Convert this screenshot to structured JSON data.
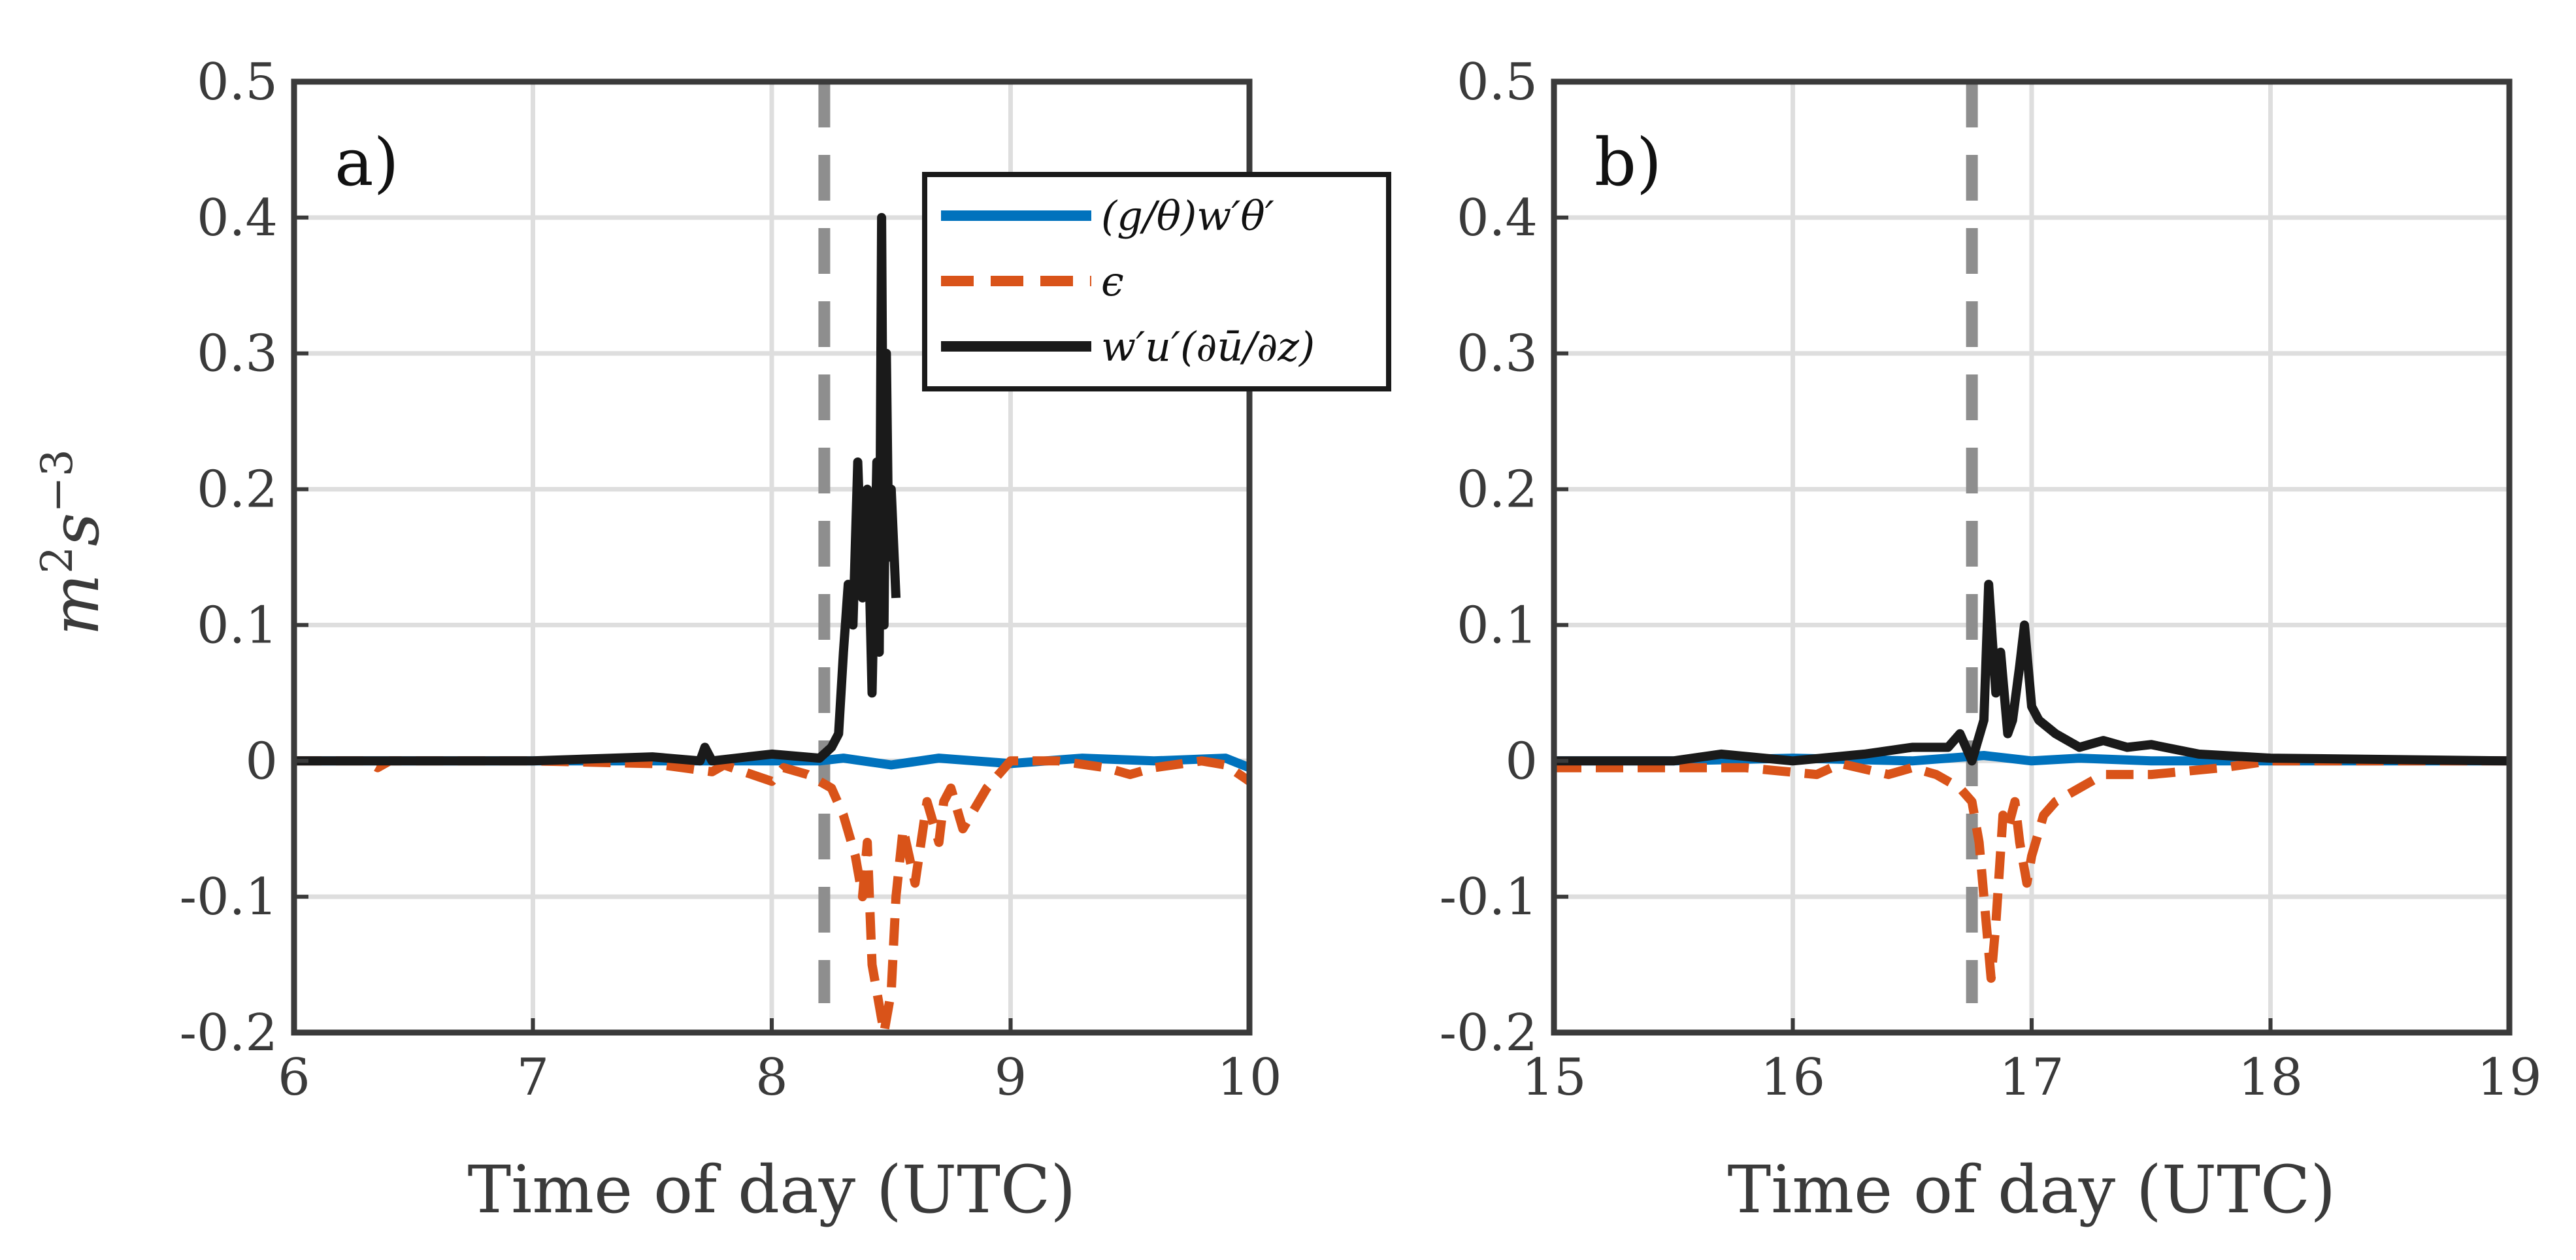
{
  "chart_data": [
    {
      "type": "line",
      "panel_label": "a)",
      "xlabel": "Time of day (UTC)",
      "ylabel": "m²s⁻³",
      "ylabel_base": "m",
      "ylabel_exp1": "2",
      "ylabel_mid": "s",
      "ylabel_exp2": "−3",
      "xlim": [
        6,
        10
      ],
      "ylim": [
        -0.2,
        0.5
      ],
      "xticks": [
        6,
        7,
        8,
        9,
        10
      ],
      "xtick_labels": [
        "6",
        "7",
        "8",
        "9",
        "10"
      ],
      "yticks": [
        -0.2,
        -0.1,
        0,
        0.1,
        0.2,
        0.3,
        0.4,
        0.5
      ],
      "ytick_labels": [
        "-0.2",
        "-0.1",
        "0",
        "0.1",
        "0.2",
        "0.3",
        "0.4",
        "0.5"
      ],
      "grid": true,
      "vline_x": 8.22,
      "legend": {
        "placement": "top-right",
        "entries": [
          "(g/θ)w′θ′",
          "ϵ",
          "w′u′(∂ū/∂z)"
        ]
      },
      "series": [
        {
          "name": "(g/θ)w′θ′",
          "color": "#0072BD",
          "style": "solid",
          "x": [
            6.0,
            6.5,
            7.0,
            7.5,
            8.0,
            8.2,
            8.3,
            8.5,
            8.7,
            9.0,
            9.3,
            9.6,
            9.9,
            10.0
          ],
          "y": [
            0.0,
            0.0,
            0.0,
            0.0,
            0.0,
            0.0,
            0.002,
            -0.003,
            0.002,
            -0.002,
            0.002,
            0.0,
            0.002,
            -0.005
          ]
        },
        {
          "name": "ϵ",
          "color": "#D95319",
          "style": "dashed",
          "x": [
            6.0,
            6.3,
            6.35,
            6.4,
            7.0,
            7.5,
            7.75,
            7.8,
            8.0,
            8.05,
            8.15,
            8.25,
            8.3,
            8.35,
            8.38,
            8.4,
            8.42,
            8.45,
            8.47,
            8.5,
            8.52,
            8.55,
            8.6,
            8.65,
            8.7,
            8.72,
            8.75,
            8.8,
            8.9,
            9.0,
            9.2,
            9.4,
            9.5,
            9.6,
            9.8,
            9.9,
            10.0
          ],
          "y": [
            0.0,
            0.0,
            -0.005,
            0.0,
            0.0,
            -0.002,
            -0.008,
            -0.003,
            -0.015,
            -0.005,
            -0.01,
            -0.02,
            -0.04,
            -0.07,
            -0.1,
            -0.06,
            -0.15,
            -0.18,
            -0.2,
            -0.17,
            -0.1,
            -0.05,
            -0.09,
            -0.03,
            -0.06,
            -0.03,
            -0.02,
            -0.05,
            -0.02,
            0.0,
            0.0,
            -0.005,
            -0.01,
            -0.005,
            0.0,
            -0.003,
            -0.015
          ]
        },
        {
          "name": "w′u′(∂ū/∂z)",
          "color": "#1a1a1a",
          "style": "solid",
          "x": [
            6.0,
            6.5,
            7.0,
            7.5,
            7.7,
            7.72,
            7.75,
            8.0,
            8.2,
            8.25,
            8.28,
            8.3,
            8.32,
            8.34,
            8.36,
            8.38,
            8.4,
            8.42,
            8.44,
            8.45,
            8.46,
            8.47,
            8.48,
            8.49,
            8.5,
            8.52
          ],
          "y": [
            0.0,
            0.0,
            0.0,
            0.003,
            0.0,
            0.01,
            0.0,
            0.005,
            0.002,
            0.01,
            0.02,
            0.08,
            0.13,
            0.1,
            0.22,
            0.12,
            0.2,
            0.05,
            0.22,
            0.08,
            0.4,
            0.1,
            0.3,
            0.15,
            0.2,
            0.12
          ]
        }
      ]
    },
    {
      "type": "line",
      "panel_label": "b)",
      "xlabel": "Time of day (UTC)",
      "xlim": [
        15,
        19
      ],
      "ylim": [
        -0.2,
        0.5
      ],
      "xticks": [
        15,
        16,
        17,
        18,
        19
      ],
      "xtick_labels": [
        "15",
        "16",
        "17",
        "18",
        "19"
      ],
      "yticks": [
        -0.2,
        -0.1,
        0,
        0.1,
        0.2,
        0.3,
        0.4,
        0.5
      ],
      "ytick_labels": [
        "-0.2",
        "-0.1",
        "0",
        "0.1",
        "0.2",
        "0.3",
        "0.4",
        "0.5"
      ],
      "grid": true,
      "vline_x": 16.75,
      "series": [
        {
          "name": "(g/θ)w′θ′",
          "color": "#0072BD",
          "style": "solid",
          "x": [
            15.0,
            15.5,
            16.0,
            16.5,
            16.8,
            17.0,
            17.2,
            17.5,
            18.0,
            19.0
          ],
          "y": [
            0.0,
            0.0,
            0.002,
            0.0,
            0.004,
            0.0,
            0.002,
            0.0,
            0.0,
            0.0
          ]
        },
        {
          "name": "ϵ",
          "color": "#D95319",
          "style": "dashed",
          "x": [
            15.0,
            15.4,
            15.8,
            16.1,
            16.2,
            16.4,
            16.5,
            16.6,
            16.7,
            16.75,
            16.78,
            16.8,
            16.83,
            16.85,
            16.88,
            16.9,
            16.93,
            16.95,
            16.98,
            17.0,
            17.05,
            17.1,
            17.2,
            17.3,
            17.5,
            17.8,
            18.0,
            19.0
          ],
          "y": [
            -0.005,
            -0.005,
            -0.005,
            -0.01,
            -0.002,
            -0.01,
            -0.005,
            -0.01,
            -0.02,
            -0.03,
            -0.06,
            -0.1,
            -0.16,
            -0.12,
            -0.04,
            -0.05,
            -0.03,
            -0.06,
            -0.09,
            -0.07,
            -0.04,
            -0.03,
            -0.02,
            -0.01,
            -0.01,
            -0.005,
            0.0,
            0.0
          ]
        },
        {
          "name": "w′u′(∂ū/∂z)",
          "color": "#1a1a1a",
          "style": "solid",
          "x": [
            15.0,
            15.5,
            15.7,
            16.0,
            16.3,
            16.5,
            16.65,
            16.7,
            16.75,
            16.8,
            16.82,
            16.85,
            16.87,
            16.9,
            16.92,
            16.95,
            16.97,
            17.0,
            17.03,
            17.1,
            17.2,
            17.3,
            17.4,
            17.5,
            17.7,
            18.0,
            19.0
          ],
          "y": [
            0.0,
            0.0,
            0.005,
            0.0,
            0.005,
            0.01,
            0.01,
            0.02,
            0.0,
            0.03,
            0.13,
            0.05,
            0.08,
            0.02,
            0.03,
            0.07,
            0.1,
            0.04,
            0.03,
            0.02,
            0.01,
            0.015,
            0.01,
            0.012,
            0.005,
            0.002,
            0.0
          ]
        }
      ]
    }
  ]
}
